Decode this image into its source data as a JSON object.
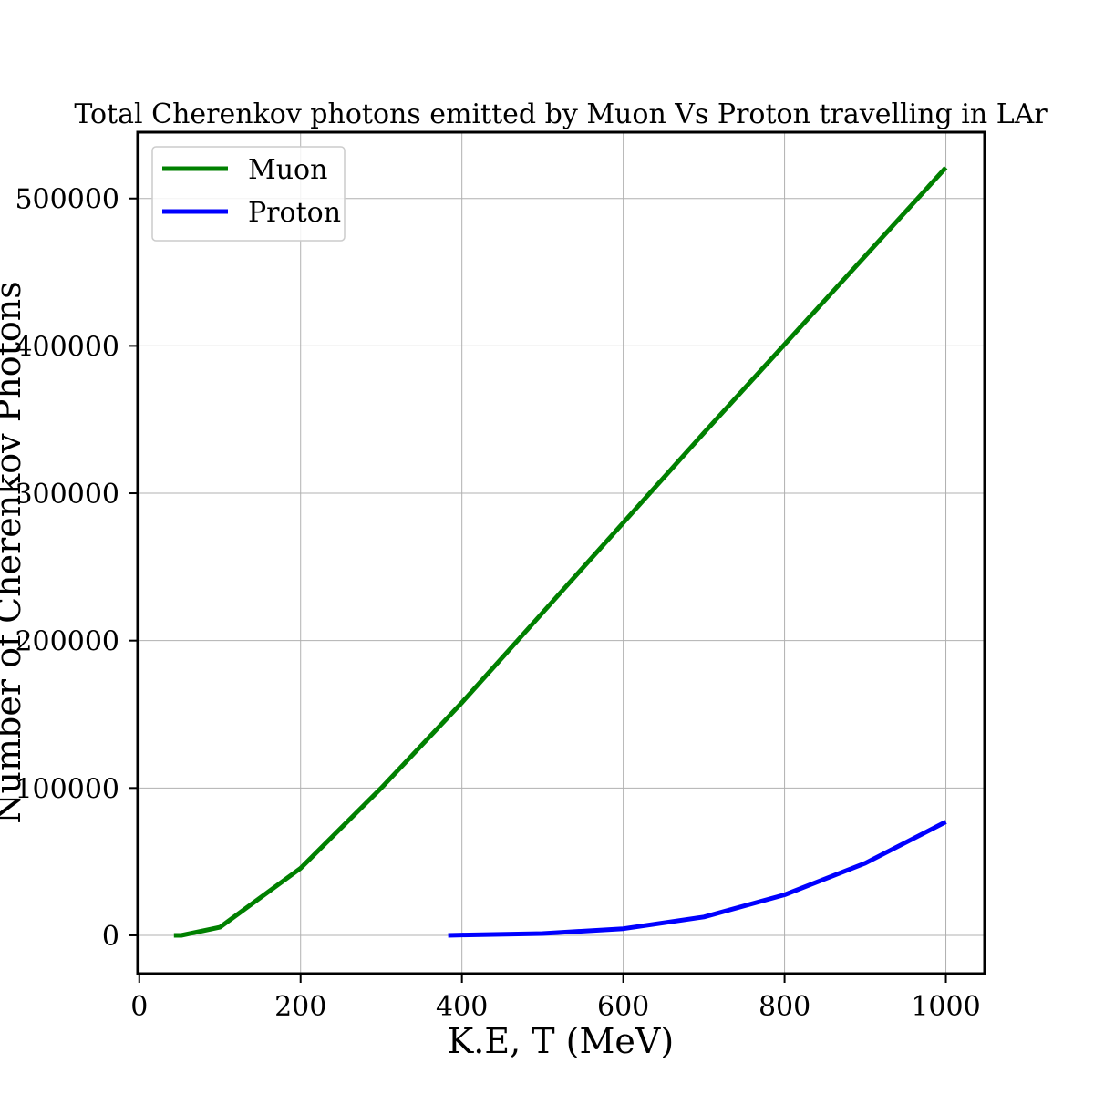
{
  "chart_data": {
    "type": "line",
    "title": "Total Cherenkov photons emitted by Muon Vs Proton travelling in LAr",
    "xlabel": "K.E, T (MeV)",
    "ylabel": "Number of Cherenkov Photons",
    "xlim": [
      -2,
      1048
    ],
    "ylim": [
      -26000,
      545000
    ],
    "xticks": [
      0,
      200,
      400,
      600,
      800,
      1000
    ],
    "yticks": [
      0,
      100000,
      200000,
      300000,
      400000,
      500000
    ],
    "grid": true,
    "legend_position": "top-left",
    "series": [
      {
        "name": "Muon",
        "color": "#008000",
        "x": [
          43,
          52,
          100,
          200,
          300,
          400,
          500,
          600,
          700,
          800,
          900,
          1000
        ],
        "y": [
          0,
          0,
          5500,
          45500,
          100000,
          158000,
          219000,
          280000,
          341000,
          401000,
          461000,
          521000
        ]
      },
      {
        "name": "Proton",
        "color": "#0000ff",
        "x": [
          383,
          400,
          500,
          600,
          700,
          800,
          900,
          1000
        ],
        "y": [
          0,
          200,
          1200,
          4500,
          12500,
          27500,
          49000,
          77000
        ]
      }
    ]
  }
}
